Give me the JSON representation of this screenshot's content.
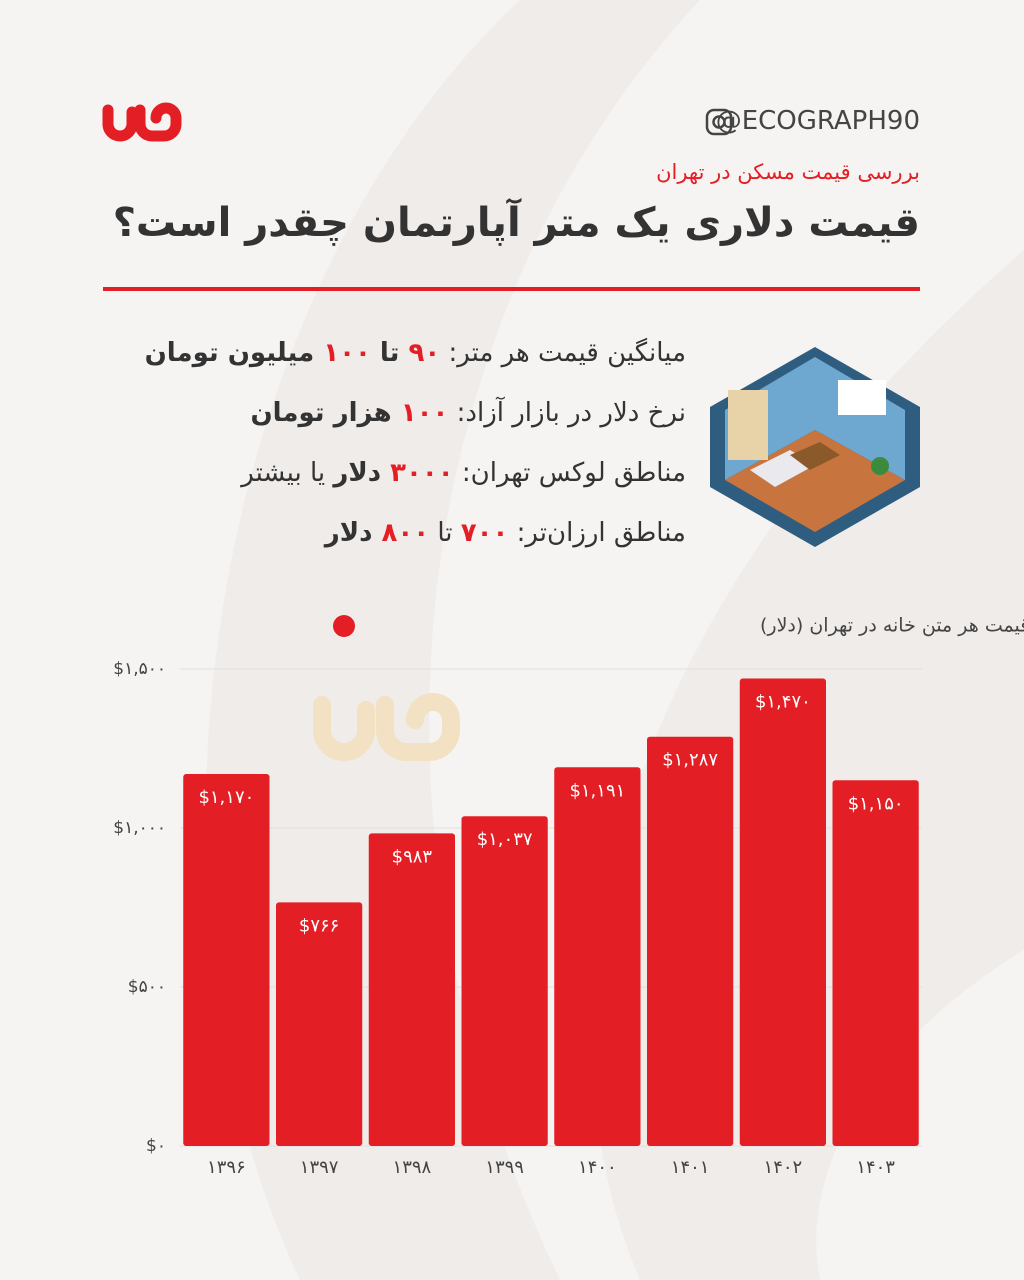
{
  "header": {
    "handle": "@ECOGRAPH90",
    "subtitle": "بررسی قیمت مسکن در تهران",
    "title": "قیمت دلاری یک متر آپارتمان چقدر است؟"
  },
  "notes": [
    [
      "میانگین قیمت هر متر: ",
      "۹۰",
      " تا ",
      "۱۰۰",
      " میلیون تومان"
    ],
    [
      "نرخ دلار در بازار آزاد: ",
      "۱۰۰",
      " هزار تومان"
    ],
    [
      "مناطق لوکس تهران: ",
      "۳۰۰۰",
      " دلار",
      " یا بیشتر"
    ],
    [
      "مناطق ارزان‌تر: ",
      "۷۰۰",
      " تا ",
      "۸۰۰",
      " دلار"
    ]
  ],
  "chart_data": {
    "type": "bar",
    "categories": [
      "۱۳۹۶",
      "۱۳۹۷",
      "۱۳۹۸",
      "۱۳۹۹",
      "۱۴۰۰",
      "۱۴۰۱",
      "۱۴۰۲",
      "۱۴۰۳"
    ],
    "series": [
      {
        "name": "میانگین قیمت هر متن خانه در تهران (دلار)",
        "color": "#e31e25",
        "values": [
          1170,
          766,
          983,
          1037,
          1191,
          1287,
          1470,
          1150
        ],
        "value_labels": [
          "$۱,۱۷۰",
          "$۷۶۶",
          "$۹۸۳",
          "$۱,۰۳۷",
          "$۱,۱۹۱",
          "$۱,۲۸۷",
          "$۱,۴۷۰",
          "$۱,۱۵۰"
        ]
      }
    ],
    "ylim": [
      0,
      1500
    ],
    "yticks": [
      {
        "value": 0,
        "label": "$۰"
      },
      {
        "value": 500,
        "label": "$۵۰۰"
      },
      {
        "value": 1000,
        "label": "$۱,۰۰۰"
      },
      {
        "value": 1500,
        "label": "$۱,۵۰۰"
      }
    ],
    "grid": true
  }
}
